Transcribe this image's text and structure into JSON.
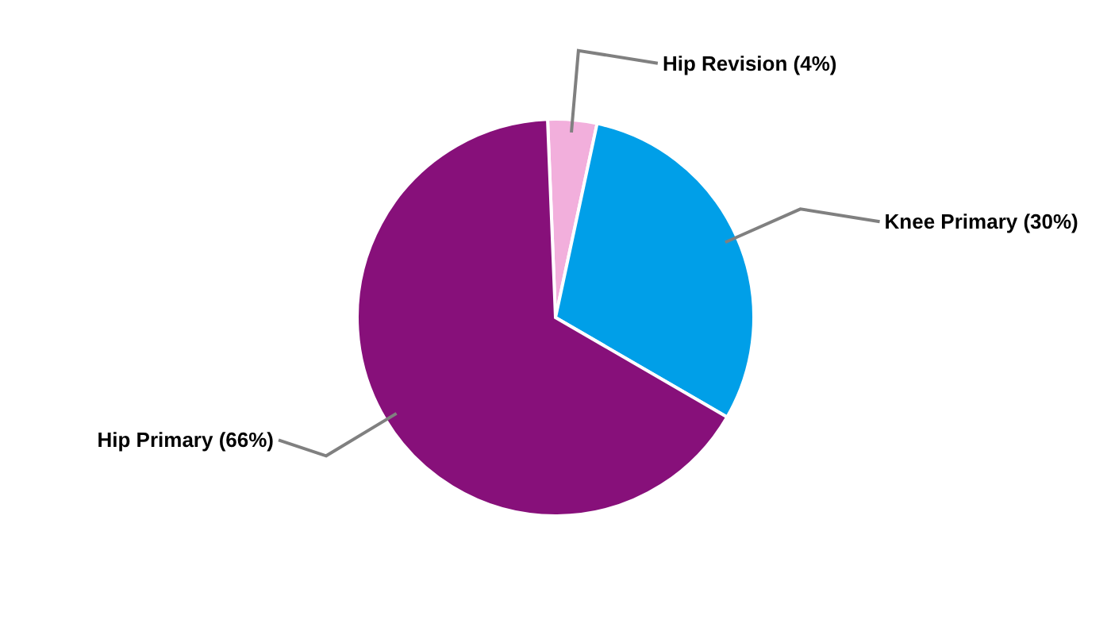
{
  "chart_data": {
    "type": "pie",
    "categories": [
      "Hip Revision (4%)",
      "Knee Primary (30%)",
      "Hip Primary (66%)"
    ],
    "values": [
      4,
      30,
      66
    ],
    "colors": [
      "#f2afdc",
      "#009fe8",
      "#87107a"
    ]
  }
}
